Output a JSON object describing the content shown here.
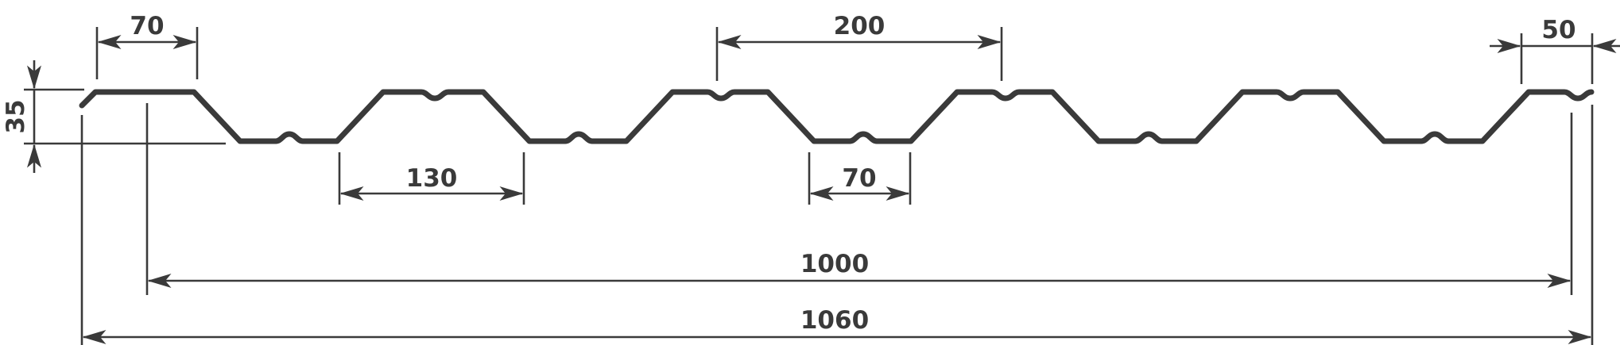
{
  "colors": {
    "line": "#3a3a3a",
    "background": "#ffffff"
  },
  "dimensions": {
    "top_flange_width": "70",
    "profile_height": "35",
    "pitch": "200",
    "end_flange_width": "50",
    "bottom_trough_width": "130",
    "bottom_flange_width": "70",
    "useful_width": "1000",
    "total_width": "1060"
  }
}
